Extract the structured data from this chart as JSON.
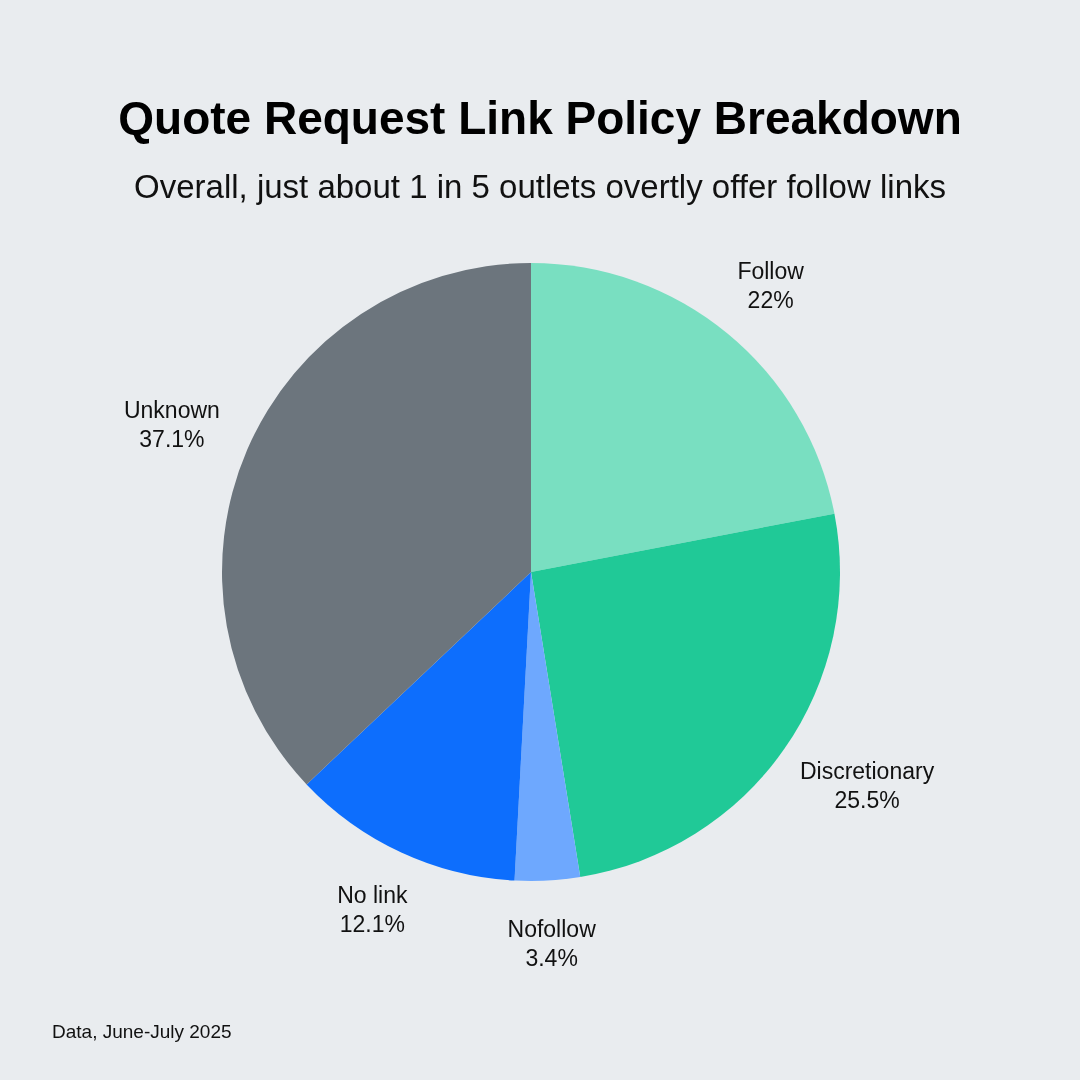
{
  "chart_data": {
    "type": "pie",
    "title": "Quote Request Link Policy Breakdown",
    "subtitle": "Overall, just about 1 in 5 outlets overtly offer follow links",
    "categories": [
      "Follow",
      "Discretionary",
      "Nofollow",
      "No link",
      "Unknown"
    ],
    "values": [
      22,
      25.5,
      3.4,
      12.1,
      37.1
    ],
    "value_labels": [
      "22%",
      "25.5%",
      "3.4%",
      "12.1%",
      "37.1%"
    ],
    "colors": [
      "#79dfc1",
      "#20c997",
      "#6ea8fe",
      "#0d6efd",
      "#6c757d"
    ],
    "annotations": [
      "Data, June-July 2025"
    ]
  }
}
